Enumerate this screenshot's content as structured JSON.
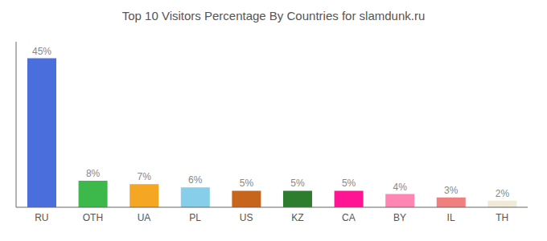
{
  "chart_data": {
    "type": "bar",
    "title": "Top 10 Visitors Percentage By Countries for slamdunk.ru",
    "categories": [
      "RU",
      "OTH",
      "UA",
      "PL",
      "US",
      "KZ",
      "CA",
      "BY",
      "IL",
      "TH"
    ],
    "values": [
      45,
      8,
      7,
      6,
      5,
      5,
      5,
      4,
      3,
      2
    ],
    "value_labels": [
      "45%",
      "8%",
      "7%",
      "6%",
      "5%",
      "5%",
      "5%",
      "4%",
      "3%",
      "2%"
    ],
    "colors": [
      "#4a6fdc",
      "#3cb94a",
      "#f5a623",
      "#87ceeb",
      "#c8651d",
      "#2e7d2e",
      "#ff1493",
      "#ff85b3",
      "#f08080",
      "#f0ead8"
    ],
    "ylim": [
      0,
      50
    ],
    "data_labels": true,
    "tick_labels": "x",
    "grid": false
  }
}
